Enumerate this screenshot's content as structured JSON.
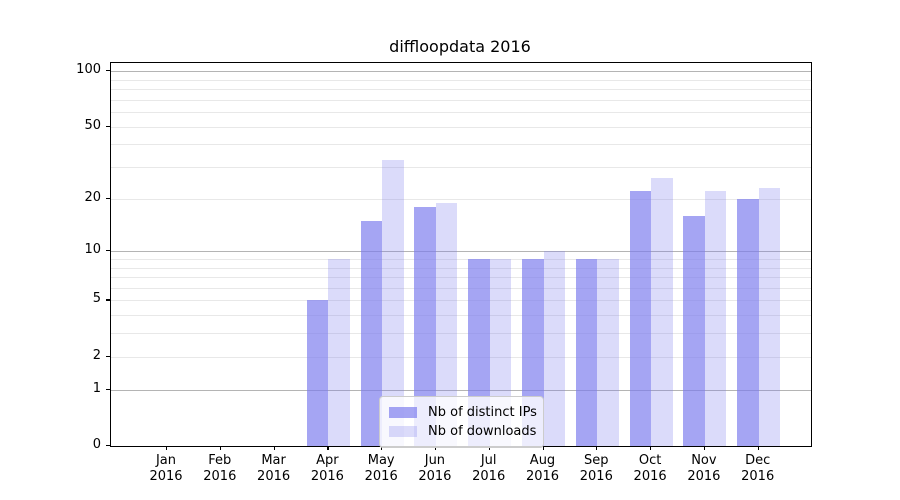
{
  "chart_data": {
    "type": "bar",
    "title": "diffloopdata 2016",
    "xlabel": "",
    "ylabel": "",
    "categories": [
      "Jan 2016",
      "Feb 2016",
      "Mar 2016",
      "Apr 2016",
      "May 2016",
      "Jun 2016",
      "Jul 2016",
      "Aug 2016",
      "Sep 2016",
      "Oct 2016",
      "Nov 2016",
      "Dec 2016"
    ],
    "x_tick_months": [
      "Jan",
      "Feb",
      "Mar",
      "Apr",
      "May",
      "Jun",
      "Jul",
      "Aug",
      "Sep",
      "Oct",
      "Nov",
      "Dec"
    ],
    "x_tick_year": "2016",
    "series": [
      {
        "name": "Nb of distinct IPs",
        "values": [
          0,
          0,
          0,
          5,
          15,
          18,
          9,
          9,
          9,
          22,
          16,
          20
        ],
        "color": "rgba(122,122,238,0.68)"
      },
      {
        "name": "Nb of downloads",
        "values": [
          0,
          0,
          0,
          9,
          33,
          19,
          9,
          10,
          9,
          26,
          22,
          23
        ],
        "color": "rgba(122,122,238,0.27)"
      }
    ],
    "yscale": "log1p",
    "y_ticks": [
      0,
      1,
      2,
      5,
      10,
      20,
      50,
      100
    ],
    "y_major_grid": [
      1,
      10,
      100
    ],
    "y_minor_grid": [
      2,
      3,
      4,
      5,
      6,
      7,
      8,
      9,
      20,
      30,
      40,
      50,
      60,
      70,
      80,
      90
    ],
    "ylim": [
      0,
      110
    ],
    "grid": true,
    "legend_position": "lower center",
    "colors": {
      "bar_base": "#7a7aee",
      "major_grid": "#b4b4b4",
      "minor_grid": "#e8e8e8",
      "spine": "#000000",
      "background": "#ffffff"
    }
  }
}
